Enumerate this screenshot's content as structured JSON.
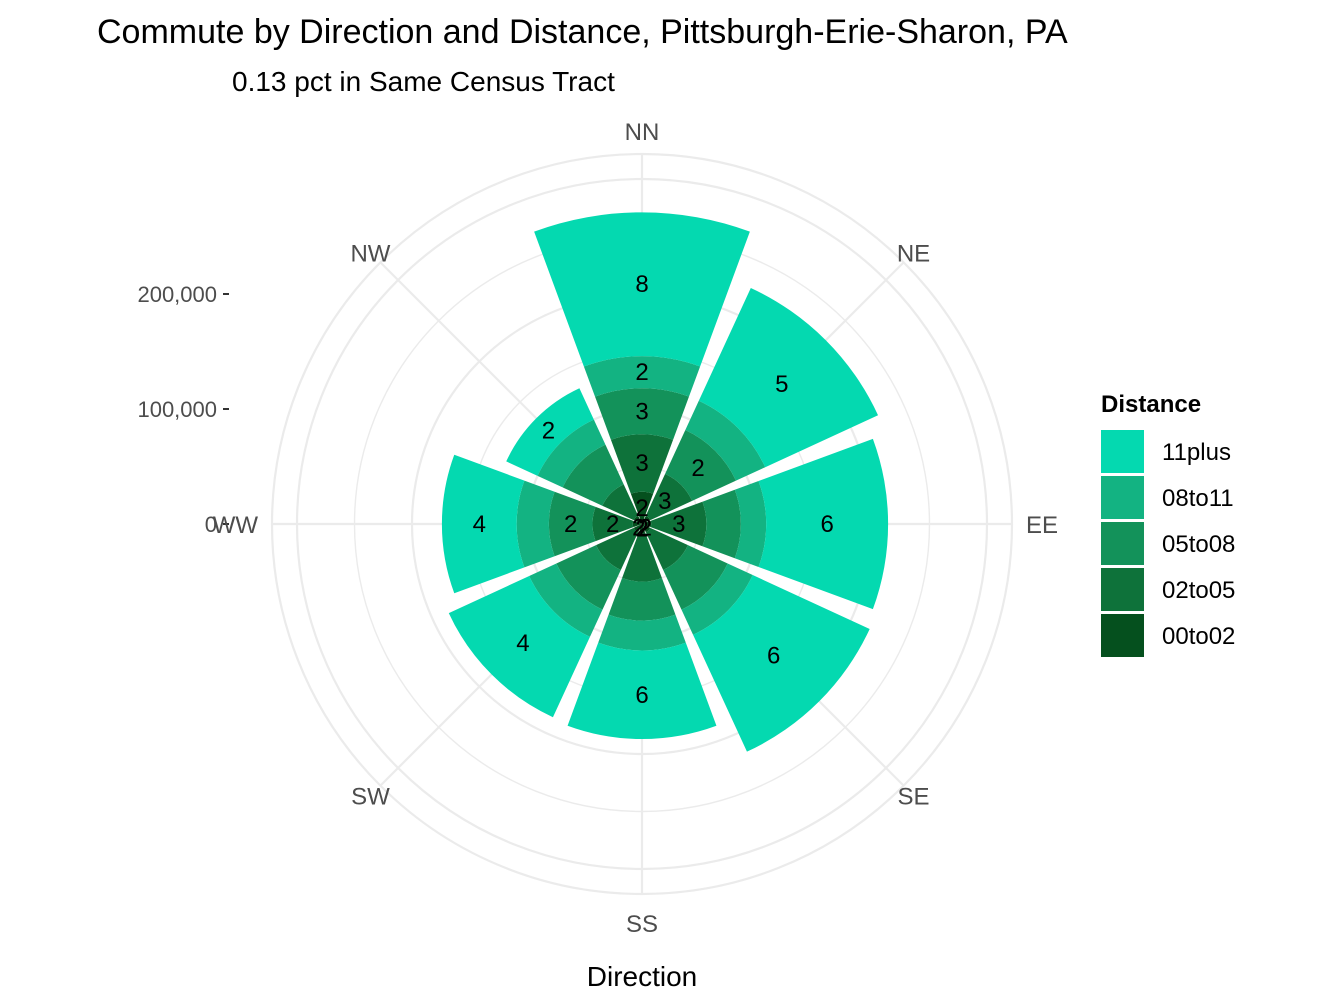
{
  "chart_data": {
    "type": "bar",
    "coord": "polar",
    "title": "Commute by Direction and Distance, Pittsburgh-Erie-Sharon, PA",
    "subtitle": "0.13 pct in Same Census Tract",
    "xlabel": "Direction",
    "ylabel": "",
    "categories": [
      "NN",
      "NE",
      "EE",
      "SE",
      "SS",
      "SW",
      "WW",
      "NW"
    ],
    "y_ticks": [
      0,
      100000,
      200000
    ],
    "y_tick_labels": [
      "0",
      "100,000",
      "200,000"
    ],
    "ylim": [
      0,
      300000
    ],
    "grid": true,
    "legend": {
      "title": "Distance",
      "position": "right"
    },
    "series": [
      {
        "name": "00to02",
        "color": "#05501e",
        "values": [
          28000,
          8000,
          8000,
          8000,
          8000,
          8000,
          8000,
          8000
        ],
        "labels": [
          "2",
          "",
          "",
          "2",
          "2",
          "2",
          "",
          ""
        ]
      },
      {
        "name": "02to05",
        "color": "#0e723a",
        "values": [
          50000,
          40000,
          48000,
          36000,
          42000,
          36000,
          35000,
          30000
        ],
        "labels": [
          "3",
          "3",
          "3",
          "",
          "",
          "",
          "2",
          ""
        ]
      },
      {
        "name": "05to08",
        "color": "#13925a",
        "values": [
          40000,
          42000,
          30000,
          38000,
          34000,
          38000,
          38000,
          38000
        ],
        "labels": [
          "3",
          "2",
          "",
          "",
          "",
          "",
          "2",
          ""
        ]
      },
      {
        "name": "08to11",
        "color": "#13b382",
        "values": [
          28000,
          28000,
          22000,
          24000,
          26000,
          26000,
          28000,
          24000
        ],
        "labels": [
          "2",
          "",
          "",
          "",
          "",
          "",
          "",
          ""
        ]
      },
      {
        "name": "11plus",
        "color": "#04d9b0",
        "values": [
          125000,
          108000,
          106000,
          112000,
          77000,
          77000,
          65000,
          30000
        ],
        "labels": [
          "8",
          "5",
          "6",
          "6",
          "6",
          "4",
          "4",
          "2"
        ]
      }
    ]
  }
}
